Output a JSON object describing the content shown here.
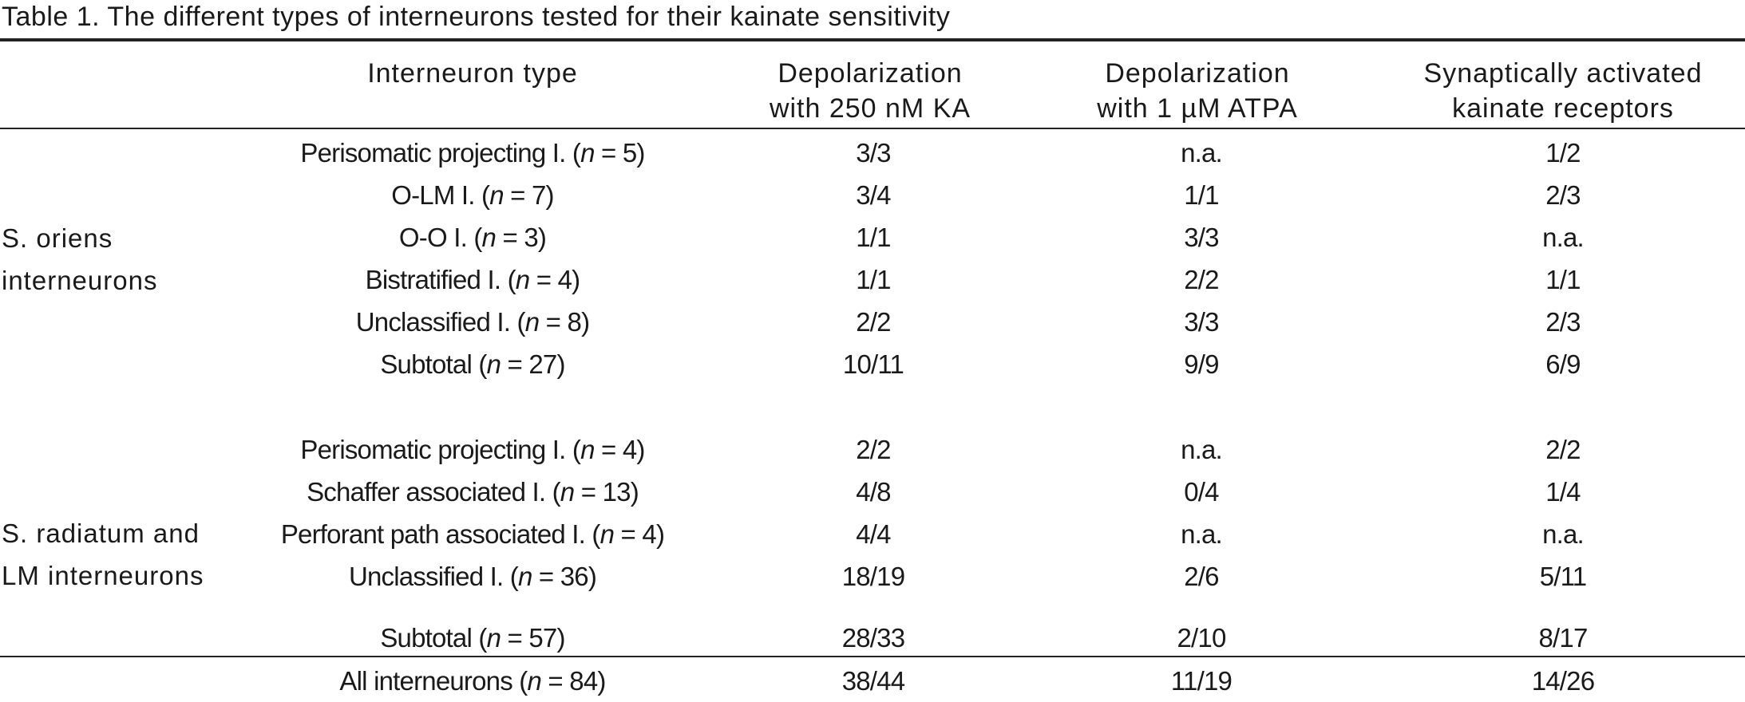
{
  "caption": "Table 1. The different types of interneurons tested for their kainate sensitivity",
  "headers": {
    "type": "Interneuron type",
    "ka": [
      "Depolarization",
      "with 250 nM KA"
    ],
    "atpa": [
      "Depolarization",
      "with 1 µM ATPA"
    ],
    "syn": [
      "Synaptically activated",
      "kainate receptors"
    ]
  },
  "groups": [
    {
      "label": [
        "S. oriens",
        "interneurons"
      ]
    },
    {
      "label": [
        "S. radiatum and",
        "LM interneurons"
      ]
    }
  ],
  "rows": [
    {
      "name": "Perisomatic projecting I.",
      "n": "5",
      "ka": "3/3",
      "atpa": "n.a.",
      "syn": "1/2"
    },
    {
      "name": "O-LM I.",
      "n": "7",
      "ka": "3/4",
      "atpa": "1/1",
      "syn": "2/3"
    },
    {
      "name": "O-O I.",
      "n": "3",
      "ka": "1/1",
      "atpa": "3/3",
      "syn": "n.a."
    },
    {
      "name": "Bistratified I.",
      "n": "4",
      "ka": "1/1",
      "atpa": "2/2",
      "syn": "1/1"
    },
    {
      "name": "Unclassified I.",
      "n": "8",
      "ka": "2/2",
      "atpa": "3/3",
      "syn": "2/3"
    },
    {
      "name": "Subtotal",
      "n": "27",
      "ka": "10/11",
      "atpa": "9/9",
      "syn": "6/9"
    },
    {
      "name": "Perisomatic projecting I.",
      "n": "4",
      "ka": "2/2",
      "atpa": "n.a.",
      "syn": "2/2"
    },
    {
      "name": "Schaffer associated I.",
      "n": "13",
      "ka": "4/8",
      "atpa": "0/4",
      "syn": "1/4"
    },
    {
      "name": "Perforant path associated I.",
      "n": "4",
      "ka": "4/4",
      "atpa": "n.a.",
      "syn": "n.a."
    },
    {
      "name": "Unclassified I.",
      "n": "36",
      "ka": "18/19",
      "atpa": "2/6",
      "syn": "5/11"
    },
    {
      "name": "Subtotal",
      "n": "57",
      "ka": "28/33",
      "atpa": "2/10",
      "syn": "8/17"
    },
    {
      "name": "All interneurons",
      "n": "84",
      "ka": "38/44",
      "atpa": "11/19",
      "syn": "14/26"
    }
  ],
  "n_symbol": "n",
  "equals": " = "
}
